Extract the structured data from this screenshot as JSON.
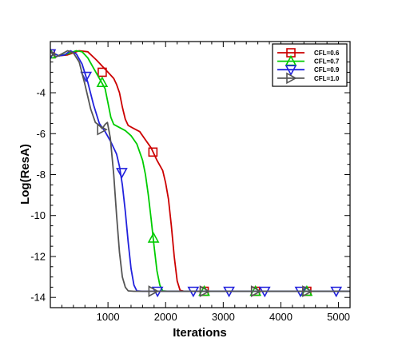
{
  "chart_data": {
    "type": "line",
    "xlabel": "Iterations",
    "ylabel": "Log(ResA)",
    "xlim": [
      0,
      5200
    ],
    "ylim": [
      -14.5,
      -1.5
    ],
    "xticks": [
      1000,
      2000,
      3000,
      4000,
      5000
    ],
    "yticks": [
      -4,
      -6,
      -8,
      -10,
      -12,
      -14
    ],
    "grid": false,
    "legend_position": "top-right",
    "series": [
      {
        "name": "CFL=0.6",
        "color": "#cc0000",
        "marker": "square",
        "points": [
          [
            0,
            -2.0
          ],
          [
            150,
            -2.2
          ],
          [
            300,
            -2.15
          ],
          [
            500,
            -1.95
          ],
          [
            650,
            -2.0
          ],
          [
            800,
            -2.4
          ],
          [
            900,
            -2.7
          ],
          [
            1000,
            -3.0
          ],
          [
            1100,
            -3.3
          ],
          [
            1150,
            -3.6
          ],
          [
            1200,
            -4.0
          ],
          [
            1250,
            -4.7
          ],
          [
            1300,
            -5.3
          ],
          [
            1350,
            -5.6
          ],
          [
            1450,
            -5.75
          ],
          [
            1550,
            -5.9
          ],
          [
            1650,
            -6.3
          ],
          [
            1750,
            -6.7
          ],
          [
            1850,
            -7.3
          ],
          [
            1950,
            -7.8
          ],
          [
            2000,
            -8.4
          ],
          [
            2050,
            -9.2
          ],
          [
            2100,
            -10.5
          ],
          [
            2150,
            -12.0
          ],
          [
            2200,
            -13.2
          ],
          [
            2250,
            -13.65
          ],
          [
            2320,
            -13.7
          ],
          [
            5200,
            -13.7
          ]
        ],
        "markers": [
          [
            0,
            -2.1
          ],
          [
            900,
            -3.0
          ],
          [
            1780,
            -6.9
          ],
          [
            2670,
            -13.7
          ],
          [
            3560,
            -13.7
          ],
          [
            4450,
            -13.7
          ]
        ]
      },
      {
        "name": "CFL=0.7",
        "color": "#00cc00",
        "marker": "triangle-up",
        "points": [
          [
            0,
            -2.0
          ],
          [
            150,
            -2.2
          ],
          [
            300,
            -2.1
          ],
          [
            450,
            -1.95
          ],
          [
            550,
            -2.0
          ],
          [
            650,
            -2.3
          ],
          [
            750,
            -2.8
          ],
          [
            850,
            -3.3
          ],
          [
            950,
            -3.8
          ],
          [
            1000,
            -4.5
          ],
          [
            1050,
            -5.2
          ],
          [
            1100,
            -5.55
          ],
          [
            1200,
            -5.7
          ],
          [
            1300,
            -5.85
          ],
          [
            1400,
            -6.1
          ],
          [
            1500,
            -6.5
          ],
          [
            1600,
            -7.3
          ],
          [
            1650,
            -8.0
          ],
          [
            1700,
            -9.0
          ],
          [
            1750,
            -10.2
          ],
          [
            1800,
            -11.5
          ],
          [
            1850,
            -12.7
          ],
          [
            1900,
            -13.4
          ],
          [
            1950,
            -13.68
          ],
          [
            2050,
            -13.7
          ],
          [
            5200,
            -13.7
          ]
        ],
        "markers": [
          [
            0,
            -2.1
          ],
          [
            900,
            -3.5
          ],
          [
            1790,
            -11.1
          ],
          [
            2670,
            -13.7
          ],
          [
            3560,
            -13.7
          ],
          [
            4450,
            -13.7
          ]
        ]
      },
      {
        "name": "CFL=0.9",
        "color": "#2222dd",
        "marker": "triangle-down",
        "points": [
          [
            0,
            -2.0
          ],
          [
            150,
            -2.2
          ],
          [
            250,
            -2.15
          ],
          [
            350,
            -1.95
          ],
          [
            450,
            -2.1
          ],
          [
            550,
            -2.6
          ],
          [
            650,
            -3.5
          ],
          [
            750,
            -4.6
          ],
          [
            850,
            -5.5
          ],
          [
            950,
            -5.9
          ],
          [
            1050,
            -6.4
          ],
          [
            1150,
            -7.0
          ],
          [
            1200,
            -7.6
          ],
          [
            1250,
            -8.5
          ],
          [
            1300,
            -9.8
          ],
          [
            1350,
            -11.3
          ],
          [
            1400,
            -12.6
          ],
          [
            1450,
            -13.4
          ],
          [
            1500,
            -13.68
          ],
          [
            1600,
            -13.7
          ],
          [
            5200,
            -13.7
          ]
        ],
        "markers": [
          [
            0,
            -2.1
          ],
          [
            620,
            -3.2
          ],
          [
            1240,
            -7.9
          ],
          [
            1860,
            -13.7
          ],
          [
            2480,
            -13.7
          ],
          [
            3100,
            -13.7
          ],
          [
            3720,
            -13.7
          ],
          [
            4340,
            -13.7
          ],
          [
            4960,
            -13.7
          ]
        ]
      },
      {
        "name": "CFL=1.0",
        "color": "#555555",
        "marker": "triangle-right",
        "points": [
          [
            0,
            -2.0
          ],
          [
            100,
            -2.25
          ],
          [
            200,
            -2.1
          ],
          [
            300,
            -1.95
          ],
          [
            400,
            -2.05
          ],
          [
            500,
            -2.5
          ],
          [
            600,
            -3.6
          ],
          [
            700,
            -4.8
          ],
          [
            780,
            -5.45
          ],
          [
            850,
            -5.6
          ],
          [
            900,
            -5.75
          ],
          [
            950,
            -5.55
          ],
          [
            990,
            -5.45
          ],
          [
            1040,
            -6.2
          ],
          [
            1100,
            -8.0
          ],
          [
            1150,
            -10.0
          ],
          [
            1200,
            -11.8
          ],
          [
            1250,
            -13.0
          ],
          [
            1300,
            -13.5
          ],
          [
            1350,
            -13.68
          ],
          [
            1450,
            -13.7
          ],
          [
            5200,
            -13.7
          ]
        ],
        "markers": [
          [
            0,
            -2.1
          ],
          [
            890,
            -5.8
          ],
          [
            1780,
            -13.7
          ],
          [
            2670,
            -13.7
          ],
          [
            3560,
            -13.7
          ],
          [
            4450,
            -13.7
          ]
        ]
      }
    ]
  }
}
